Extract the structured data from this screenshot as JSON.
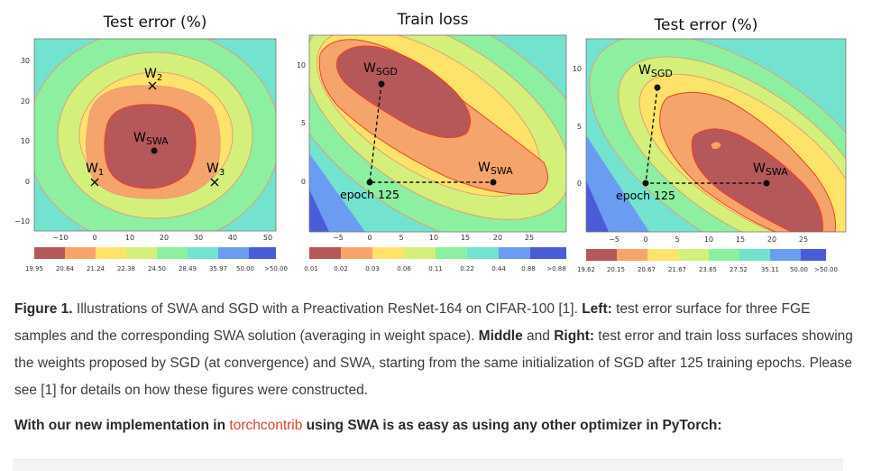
{
  "panels": [
    {
      "title": "Test error (%)",
      "x_ticks": [
        "−10",
        "0",
        "10",
        "20",
        "30",
        "40",
        "50"
      ],
      "y_ticks": [
        "30",
        "20",
        "10",
        "0",
        "−10"
      ],
      "colorbar": [
        "19.95",
        "20.64",
        "21.24",
        "22.38",
        "24.50",
        "28.49",
        "35.97",
        "50.00",
        ">50.00"
      ],
      "points": [
        {
          "label": "W",
          "sub": "2",
          "marker": "cross"
        },
        {
          "label": "W",
          "sub": "SWA",
          "marker": "dot"
        },
        {
          "label": "W",
          "sub": "1",
          "marker": "cross"
        },
        {
          "label": "W",
          "sub": "3",
          "marker": "cross"
        }
      ]
    },
    {
      "title": "Train loss",
      "x_ticks": [
        "−5",
        "0",
        "5",
        "10",
        "15",
        "20",
        "25"
      ],
      "y_ticks": [
        "10",
        "5",
        "0"
      ],
      "colorbar": [
        "0.01",
        "0.02",
        "0.03",
        "0.06",
        "0.11",
        "0.22",
        "0.44",
        "0.88",
        ">0.88"
      ],
      "points": [
        {
          "label": "W",
          "sub": "SGD",
          "marker": "dot"
        },
        {
          "label": "W",
          "sub": "SWA",
          "marker": "dot"
        },
        {
          "label": "epoch 125",
          "sub": "",
          "marker": "dot"
        }
      ]
    },
    {
      "title": "Test error (%)",
      "x_ticks": [
        "−5",
        "0",
        "5",
        "10",
        "15",
        "20",
        "25"
      ],
      "y_ticks": [
        "10",
        "5",
        "0"
      ],
      "colorbar": [
        "19.62",
        "20.15",
        "20.67",
        "21.67",
        "23.65",
        "27.52",
        "35.11",
        "50.00",
        ">50.00"
      ],
      "points": [
        {
          "label": "W",
          "sub": "SGD",
          "marker": "dot"
        },
        {
          "label": "W",
          "sub": "SWA",
          "marker": "dot"
        },
        {
          "label": "epoch 125",
          "sub": "",
          "marker": "dot"
        }
      ]
    }
  ],
  "colors": [
    "#b5585a",
    "#f5a56c",
    "#fde36a",
    "#d4f07a",
    "#8cf0a0",
    "#73e2cf",
    "#6a9cf2",
    "#4b5cd8",
    "#2f2fd0"
  ],
  "caption": {
    "figure_label": "Figure 1.",
    "part1": " Illustrations of SWA and SGD with a Preactivation ResNet-164 on CIFAR-100 [1]. ",
    "left_label": "Left:",
    "part2": " test error surface for three FGE samples and the corresponding SWA solution (averaging in weight space). ",
    "middle_label": "Middle",
    "and_word": " and ",
    "right_label": "Right:",
    "part3": " test error and train loss surfaces showing the weights proposed by SGD (at convergence) and SWA, starting from the same initialization of SGD after 125 training epochs. Please see [1] for details on how these figures were constructed."
  },
  "lead": {
    "before": "With our new implementation in ",
    "link": "torchcontrib",
    "after": " using SWA is as easy as using any other optimizer in PyTorch:"
  }
}
